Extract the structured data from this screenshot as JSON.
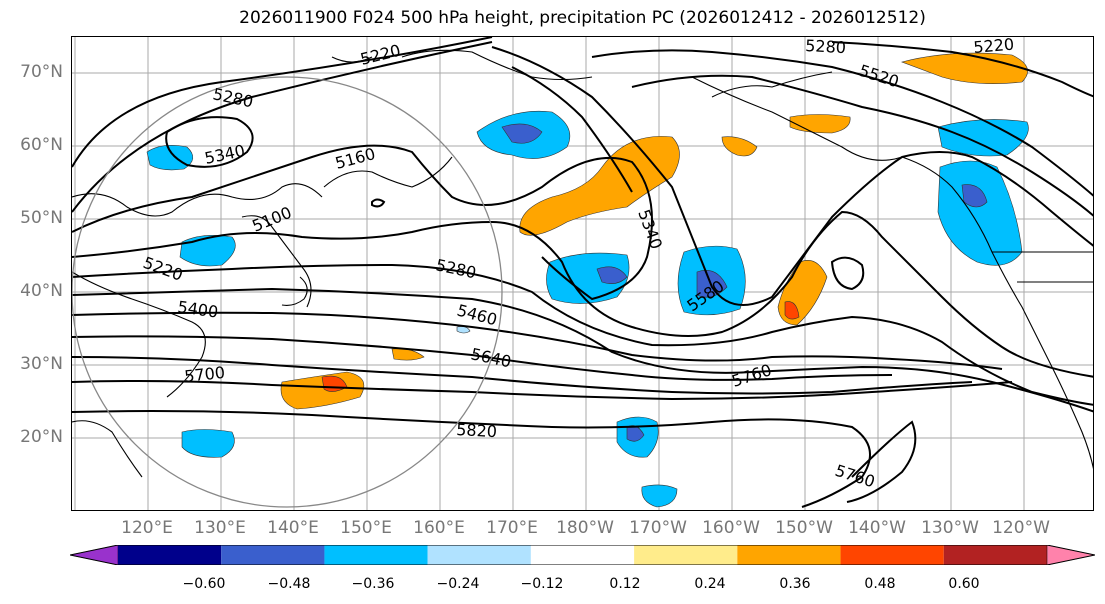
{
  "title": "2026011900 F024 500 hPa height, precipitation PC (2026012412 - 2026012512)",
  "lat_labels": [
    "70°N",
    "60°N",
    "50°N",
    "40°N",
    "30°N",
    "20°N"
  ],
  "lon_labels": [
    "120°E",
    "130°E",
    "140°E",
    "150°E",
    "160°E",
    "170°E",
    "180°W",
    "170°W",
    "160°W",
    "150°W",
    "140°W",
    "130°W",
    "120°W"
  ],
  "contour_labels": [
    "5220",
    "5280",
    "5340",
    "5160",
    "5100",
    "5220",
    "5400",
    "5280",
    "5460",
    "5640",
    "5700",
    "5820",
    "5760",
    "5760",
    "5580",
    "5340",
    "5280",
    "5220",
    "5520"
  ],
  "colorbar": {
    "ticks": [
      "−0.60",
      "−0.48",
      "−0.36",
      "−0.24",
      "−0.12",
      "0.12",
      "0.24",
      "0.36",
      "0.48",
      "0.60"
    ],
    "colors": [
      "#9932cc",
      "#00008b",
      "#3a5fcd",
      "#00bfff",
      "#b0e2ff",
      "#ffffff",
      "#ffec8b",
      "#ffa500",
      "#ff4500",
      "#b22222",
      "#ff82ab"
    ]
  }
}
